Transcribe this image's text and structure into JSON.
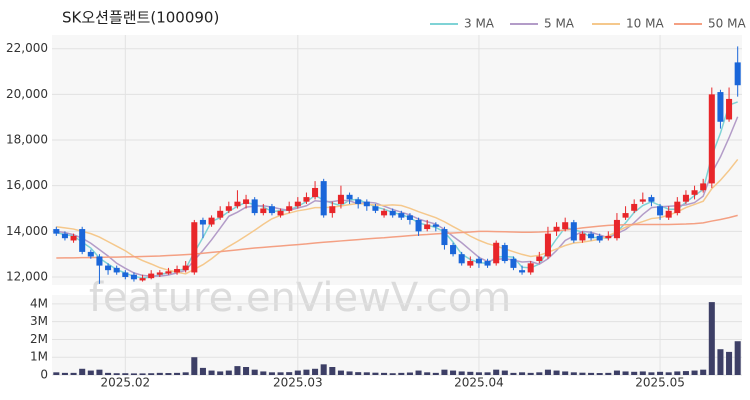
{
  "chart_data": {
    "type": "candlestick",
    "title": "SK오션플랜트(100090)",
    "watermark": "feature.enViewV.com",
    "categories": [
      null,
      null,
      null,
      null,
      null,
      null,
      null,
      null,
      "2025.02",
      null,
      null,
      null,
      null,
      null,
      null,
      null,
      null,
      null,
      null,
      null,
      null,
      null,
      null,
      null,
      null,
      null,
      null,
      null,
      "2025.03",
      null,
      null,
      null,
      null,
      null,
      null,
      null,
      null,
      null,
      null,
      null,
      null,
      null,
      null,
      null,
      null,
      null,
      null,
      null,
      null,
      "2025.04",
      null,
      null,
      null,
      null,
      null,
      null,
      null,
      null,
      null,
      null,
      null,
      null,
      null,
      null,
      null,
      null,
      null,
      null,
      null,
      null,
      "2025.05",
      null,
      null,
      null,
      null,
      null,
      null,
      null,
      null,
      null
    ],
    "open": [
      14100,
      13900,
      13600,
      14100,
      13100,
      12900,
      12500,
      12400,
      12200,
      12100,
      11850,
      11950,
      12100,
      12150,
      12200,
      12300,
      12200,
      14500,
      14300,
      14600,
      14900,
      15100,
      15200,
      15400,
      14800,
      15100,
      14700,
      14900,
      15100,
      15300,
      15500,
      16200,
      14800,
      15200,
      15600,
      15400,
      15300,
      15100,
      14700,
      14900,
      14800,
      14700,
      14500,
      14100,
      14300,
      14100,
      13400,
      13000,
      12500,
      12800,
      12700,
      12600,
      13400,
      12800,
      12300,
      12200,
      12700,
      12900,
      14000,
      14100,
      14400,
      13600,
      13900,
      13800,
      13700,
      13700,
      14600,
      14900,
      15300,
      15500,
      15100,
      14600,
      14800,
      15300,
      15600,
      15800,
      16100,
      20100,
      18900,
      21400
    ],
    "high": [
      14200,
      14000,
      13900,
      14200,
      13200,
      13000,
      12600,
      12500,
      12300,
      12200,
      12100,
      12300,
      12300,
      12400,
      12500,
      12700,
      14500,
      14600,
      14700,
      15100,
      15300,
      15800,
      15600,
      15500,
      15200,
      15200,
      15000,
      15300,
      15500,
      15700,
      16200,
      16300,
      15300,
      16000,
      15700,
      15500,
      15400,
      15200,
      15000,
      15000,
      14900,
      14800,
      14600,
      14500,
      14400,
      14200,
      13500,
      13100,
      12900,
      12900,
      12800,
      13600,
      13500,
      12900,
      12500,
      12700,
      13100,
      14200,
      14400,
      14600,
      14500,
      14000,
      14000,
      13900,
      14000,
      14800,
      15100,
      15400,
      15700,
      15600,
      15200,
      15100,
      15500,
      15800,
      16000,
      16300,
      20300,
      20200,
      20300,
      22100
    ],
    "low": [
      13800,
      13600,
      13500,
      13000,
      12800,
      11700,
      12100,
      12100,
      11900,
      11800,
      11800,
      11900,
      12000,
      12100,
      12100,
      12200,
      12100,
      13700,
      14200,
      14500,
      14800,
      15000,
      15000,
      14700,
      14700,
      14700,
      14600,
      14800,
      15000,
      15200,
      15400,
      14600,
      14600,
      15000,
      15200,
      15000,
      14900,
      14800,
      14600,
      14600,
      14500,
      14300,
      13800,
      14000,
      14000,
      13200,
      12900,
      12500,
      12400,
      12400,
      12400,
      12500,
      12600,
      12300,
      12100,
      12100,
      12600,
      12800,
      13800,
      14000,
      13500,
      13500,
      13600,
      13500,
      13600,
      13600,
      14500,
      14800,
      15200,
      15100,
      14500,
      14500,
      14700,
      15200,
      15400,
      15700,
      15900,
      18500,
      18800,
      19900
    ],
    "close": [
      13900,
      13700,
      13800,
      13100,
      12900,
      12500,
      12300,
      12200,
      12000,
      11900,
      11950,
      12150,
      12200,
      12250,
      12350,
      12500,
      14400,
      14300,
      14600,
      14900,
      15100,
      15300,
      15400,
      14800,
      15000,
      14800,
      14900,
      15100,
      15300,
      15500,
      15900,
      14700,
      15100,
      15600,
      15400,
      15200,
      15100,
      14900,
      14900,
      14700,
      14600,
      14500,
      14000,
      14300,
      14200,
      13400,
      13000,
      12600,
      12700,
      12600,
      12500,
      13500,
      12700,
      12400,
      12200,
      12600,
      12900,
      13900,
      14200,
      14400,
      13600,
      13900,
      13700,
      13600,
      13800,
      14500,
      14800,
      15200,
      15400,
      15300,
      14700,
      14900,
      15300,
      15600,
      15800,
      16100,
      20000,
      18800,
      19800,
      20400
    ],
    "up_color": "#e8262a",
    "down_color": "#1a66d9",
    "ylim": [
      11650,
      22600
    ],
    "yticks": [
      {
        "value": 12000,
        "label": "12,000"
      },
      {
        "value": 14000,
        "label": "14,000"
      },
      {
        "value": 16000,
        "label": "16,000"
      },
      {
        "value": 18000,
        "label": "18,000"
      },
      {
        "value": 20000,
        "label": "20,000"
      },
      {
        "value": 22000,
        "label": "22,000"
      }
    ],
    "grid": true,
    "moving_averages": [
      {
        "name": "3 MA",
        "color": "#7fd3d6",
        "values": [
          13950,
          13850,
          13800,
          13530,
          13270,
          12830,
          12570,
          12330,
          12170,
          12030,
          11950,
          12000,
          12100,
          12200,
          12270,
          12370,
          13080,
          13730,
          14430,
          14600,
          14870,
          15100,
          15270,
          15170,
          15070,
          14870,
          14900,
          14930,
          15100,
          15300,
          15570,
          15370,
          15230,
          15130,
          15370,
          15400,
          15230,
          15070,
          14970,
          14830,
          14730,
          14600,
          14370,
          14270,
          14170,
          13970,
          13530,
          13000,
          12770,
          12630,
          12600,
          12870,
          12900,
          12870,
          12430,
          12400,
          12570,
          13130,
          13670,
          14170,
          14070,
          13970,
          13730,
          13730,
          13700,
          13970,
          14370,
          14830,
          15130,
          15300,
          15130,
          14970,
          14970,
          15270,
          15570,
          15830,
          17300,
          18300,
          19530,
          19670
        ]
      },
      {
        "name": "5 MA",
        "color": "#b39cc8",
        "values": [
          14000,
          13950,
          13850,
          13700,
          13480,
          13200,
          12920,
          12600,
          12380,
          12180,
          12070,
          12040,
          12040,
          12090,
          12180,
          12290,
          12740,
          13160,
          13630,
          14140,
          14660,
          14840,
          15060,
          15100,
          15120,
          15060,
          14980,
          14920,
          15020,
          15120,
          15340,
          15300,
          15300,
          15360,
          15340,
          15200,
          15280,
          15240,
          15100,
          14960,
          14840,
          14720,
          14540,
          14420,
          14320,
          14080,
          13780,
          13500,
          13180,
          12860,
          12680,
          12780,
          12800,
          12740,
          12660,
          12680,
          12560,
          12800,
          13160,
          13600,
          13800,
          14000,
          13960,
          13840,
          13720,
          13900,
          14080,
          14380,
          14740,
          15040,
          15080,
          15100,
          15120,
          15160,
          15260,
          15540,
          16560,
          17260,
          18100,
          19020
        ]
      },
      {
        "name": "10 MA",
        "color": "#f5c88c",
        "values": [
          14200,
          14150,
          14100,
          14000,
          13900,
          13750,
          13550,
          13350,
          13150,
          12900,
          12720,
          12570,
          12410,
          12300,
          12210,
          12140,
          12340,
          12540,
          12800,
          13100,
          13340,
          13560,
          13800,
          14050,
          14310,
          14550,
          14700,
          14800,
          14900,
          14960,
          15040,
          15040,
          15060,
          15110,
          15170,
          15220,
          15190,
          15150,
          15140,
          15160,
          15130,
          15010,
          14860,
          14730,
          14600,
          14420,
          14210,
          14010,
          13790,
          13610,
          13460,
          13360,
          13230,
          13110,
          12990,
          12900,
          12950,
          13080,
          13230,
          13380,
          13490,
          13530,
          13590,
          13660,
          13800,
          13990,
          14180,
          14310,
          14430,
          14560,
          14600,
          14710,
          14850,
          15040,
          15180,
          15320,
          15870,
          16240,
          16670,
          17150
        ]
      },
      {
        "name": "50 MA",
        "color": "#f4a083",
        "values": [
          12830,
          12840,
          12840,
          12850,
          12850,
          12860,
          12870,
          12870,
          12880,
          12890,
          12900,
          12910,
          12920,
          12940,
          12960,
          12980,
          13000,
          13040,
          13080,
          13110,
          13150,
          13190,
          13230,
          13270,
          13300,
          13330,
          13360,
          13390,
          13420,
          13450,
          13490,
          13520,
          13550,
          13580,
          13610,
          13640,
          13670,
          13700,
          13720,
          13750,
          13780,
          13810,
          13840,
          13860,
          13890,
          13910,
          13930,
          13950,
          13970,
          14000,
          14000,
          13990,
          13980,
          13970,
          13960,
          13960,
          13970,
          13990,
          14020,
          14060,
          14100,
          14150,
          14190,
          14230,
          14260,
          14280,
          14290,
          14300,
          14300,
          14300,
          14300,
          14300,
          14310,
          14320,
          14340,
          14370,
          14450,
          14520,
          14600,
          14700
        ]
      }
    ],
    "volume": {
      "color": "#3d3f66",
      "ylim": [
        0,
        4500000
      ],
      "yticks": [
        0,
        {
          "value": 1000000,
          "label": "1M"
        },
        {
          "value": 2000000,
          "label": "2M"
        },
        {
          "value": 3000000,
          "label": "3M"
        },
        {
          "value": 4000000,
          "label": "4M"
        }
      ],
      "values": [
        150000,
        120000,
        120000,
        350000,
        250000,
        300000,
        120000,
        100000,
        100000,
        90000,
        90000,
        100000,
        120000,
        110000,
        120000,
        150000,
        1000000,
        400000,
        250000,
        200000,
        250000,
        500000,
        450000,
        300000,
        200000,
        150000,
        150000,
        160000,
        250000,
        300000,
        350000,
        600000,
        450000,
        250000,
        200000,
        160000,
        150000,
        130000,
        120000,
        100000,
        120000,
        140000,
        250000,
        150000,
        120000,
        300000,
        250000,
        200000,
        180000,
        150000,
        150000,
        300000,
        250000,
        120000,
        150000,
        120000,
        150000,
        300000,
        250000,
        200000,
        150000,
        130000,
        120000,
        110000,
        120000,
        250000,
        200000,
        180000,
        200000,
        150000,
        180000,
        150000,
        200000,
        220000,
        250000,
        300000,
        4100000,
        1450000,
        1300000,
        1900000
      ]
    }
  }
}
